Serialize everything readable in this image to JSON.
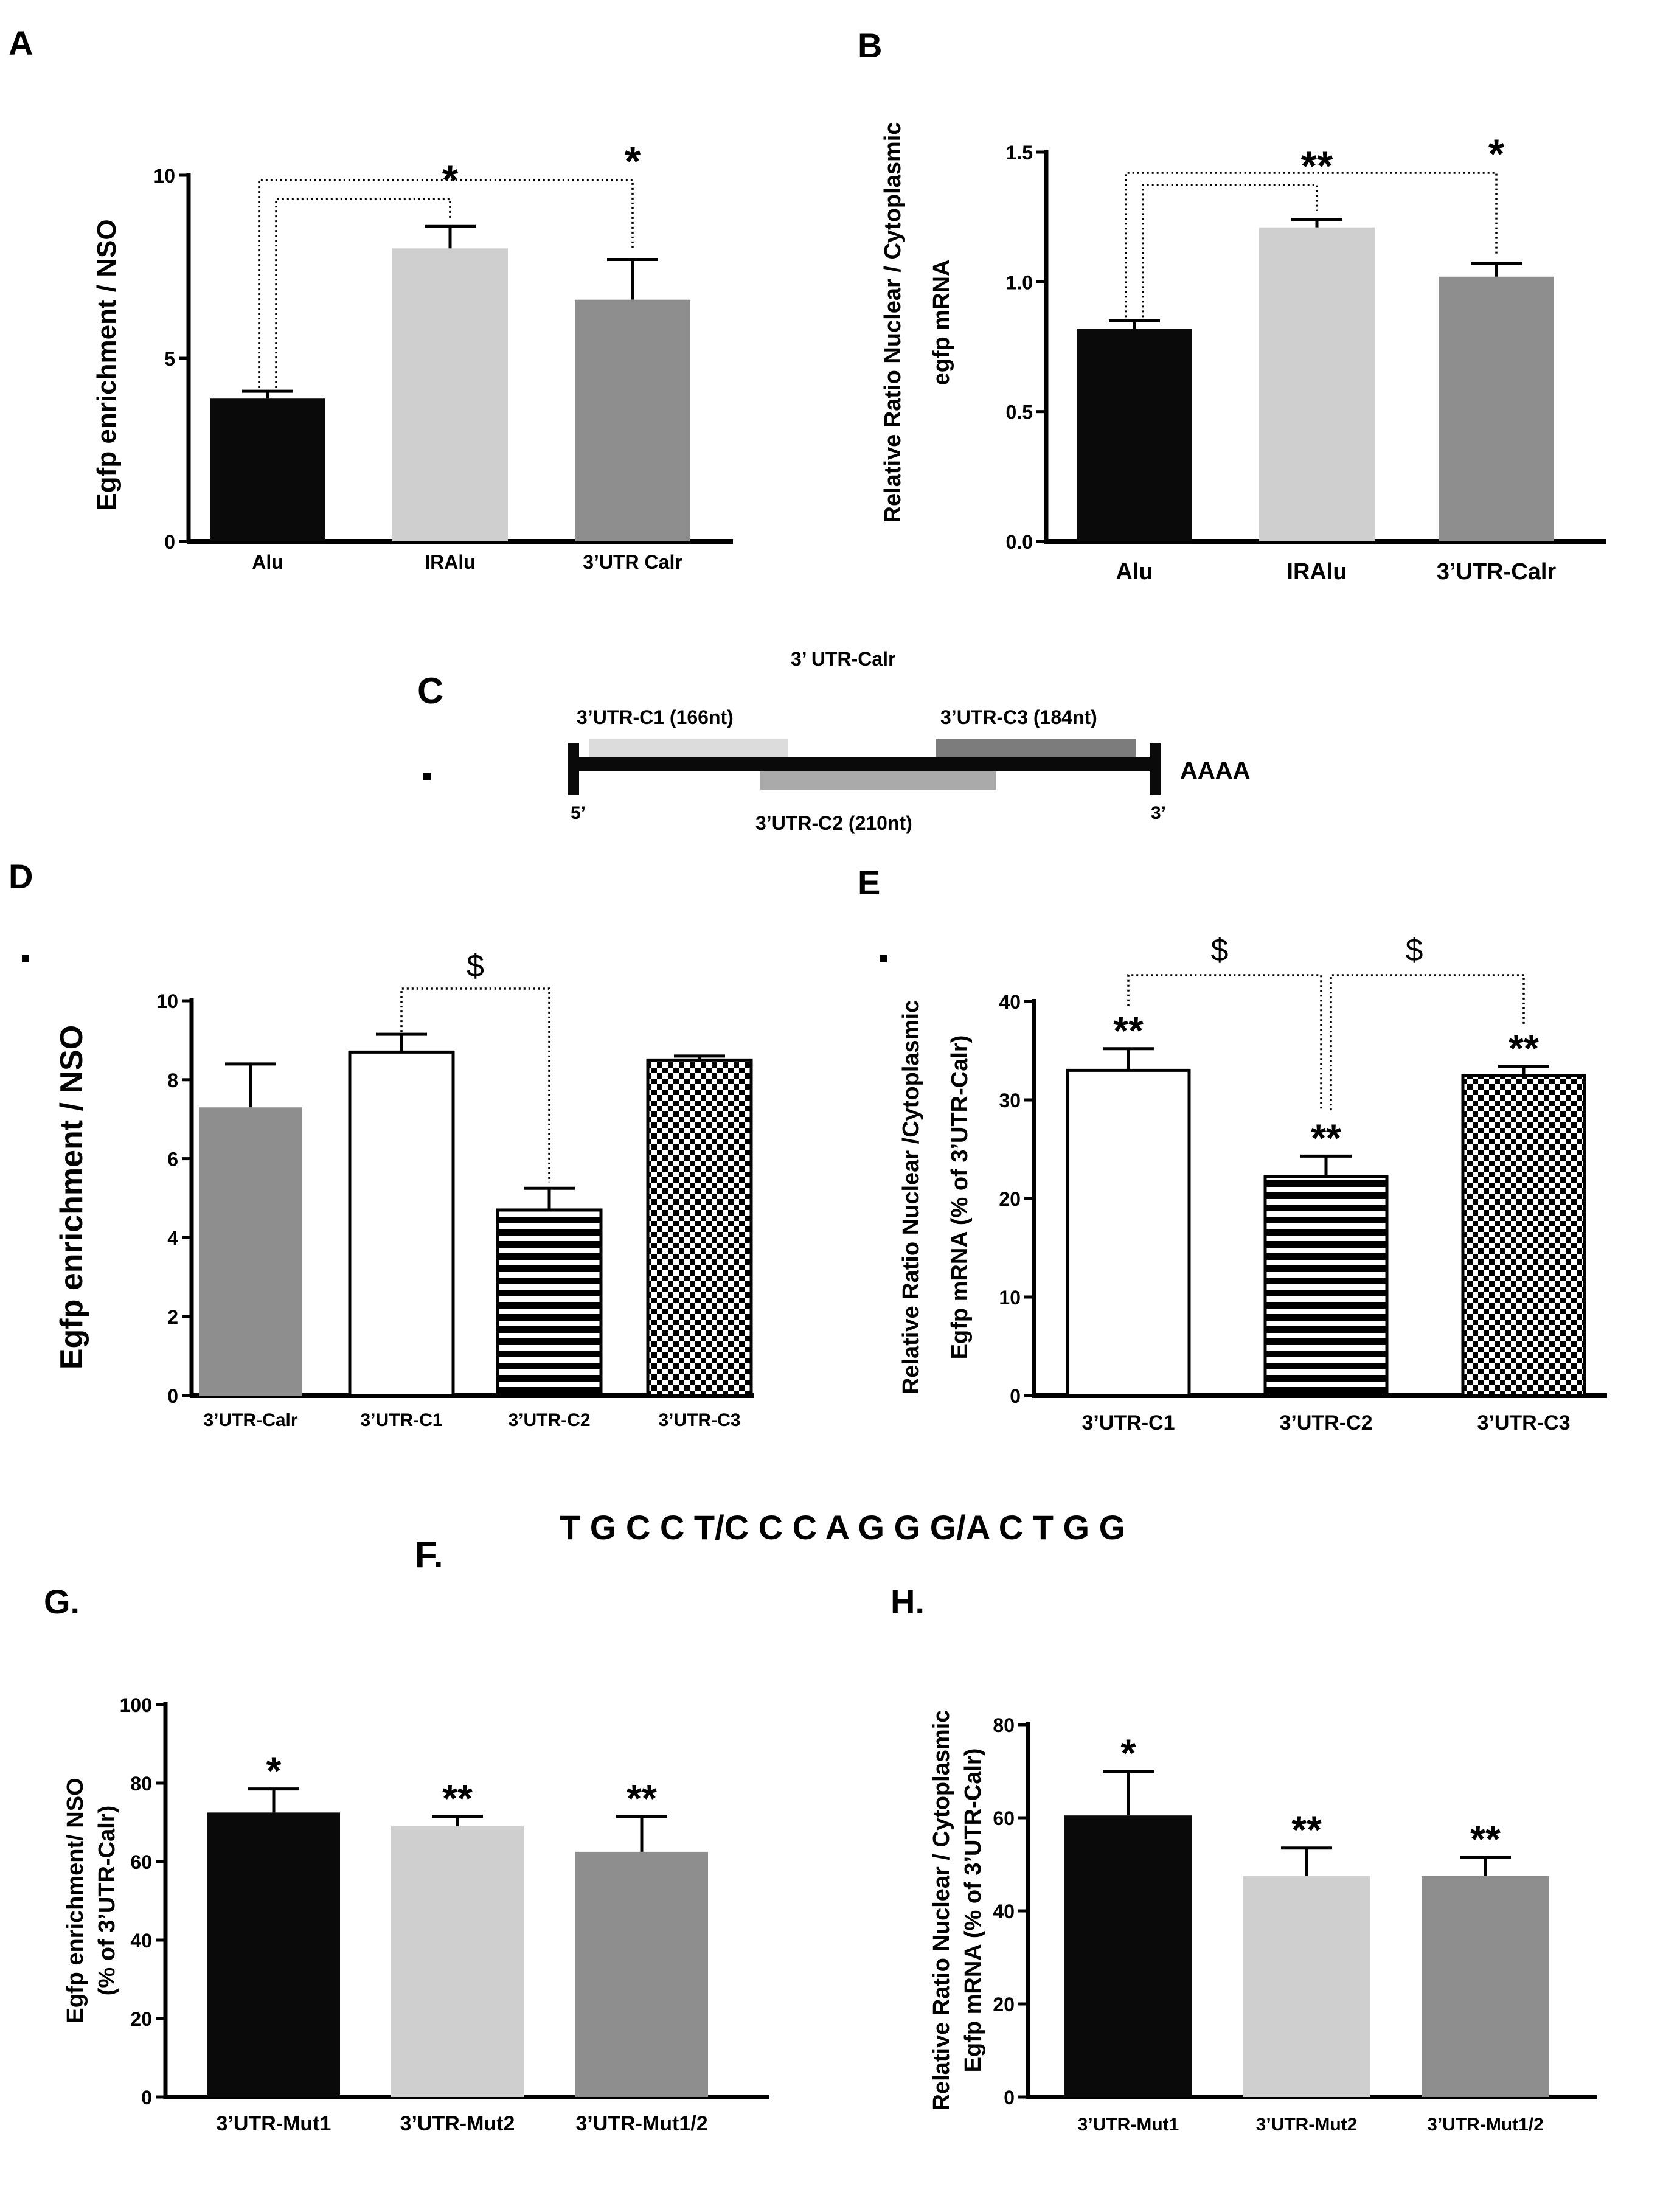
{
  "sequence": {
    "label": "F.",
    "text": "T G C C T/C C C A G G G/A C T G G"
  },
  "schematic": {
    "panel_label": "C",
    "title": "3’ UTR-Calr",
    "segment_1": "3’UTR-C1 (166nt)",
    "segment_2": "3’UTR-C2 (210nt)",
    "segment_3": "3’UTR-C3 (184nt)",
    "end_5": "5’",
    "end_3": "3’",
    "polyA": "AAAA"
  },
  "colors": {
    "black": "#0a0a0a",
    "light_gray": "#cfcfcf",
    "mid_gray": "#8e8e8e",
    "white": "#ffffff"
  },
  "chart_data": [
    {
      "id": "A",
      "panel_label": "A",
      "type": "bar",
      "ylabel": "Egfp enrichment  / NSO",
      "xlabel": "",
      "ylim": [
        0,
        10
      ],
      "yticks": [
        "0",
        "5",
        "10"
      ],
      "categories": [
        "Alu",
        "IRAlu",
        "3’UTR Calr"
      ],
      "values": [
        3.9,
        8.0,
        6.6
      ],
      "errors": [
        0.2,
        0.6,
        1.1
      ],
      "fills": [
        "black",
        "light_gray",
        "mid_gray"
      ],
      "bar_labels": [
        "",
        "",
        ""
      ],
      "brackets": [
        {
          "from": 0,
          "to": 1,
          "label": "*"
        },
        {
          "from": 0,
          "to": 2,
          "label": "*"
        }
      ]
    },
    {
      "id": "B",
      "panel_label": "B",
      "type": "bar",
      "ylabel_lines": [
        "Relative Ratio Nuclear / Cytoplasmic",
        "egfp mRNA"
      ],
      "xlabel": "",
      "ylim": [
        0,
        1.5
      ],
      "yticks": [
        "0.0",
        "0.5",
        "1.0",
        "1.5"
      ],
      "categories": [
        "Alu",
        "IRAlu",
        "3’UTR-Calr"
      ],
      "values": [
        0.82,
        1.21,
        1.02
      ],
      "errors": [
        0.03,
        0.03,
        0.05
      ],
      "fills": [
        "black",
        "light_gray",
        "mid_gray"
      ],
      "bar_labels": [
        "",
        "",
        ""
      ],
      "brackets": [
        {
          "from": 0,
          "to": 1,
          "label": "**"
        },
        {
          "from": 0,
          "to": 2,
          "label": "*"
        }
      ]
    },
    {
      "id": "D",
      "panel_label": "D",
      "type": "bar",
      "ylabel": "Egfp enrichment  / NSO",
      "xlabel": "",
      "ylim": [
        0,
        10
      ],
      "yticks": [
        "0",
        "2",
        "4",
        "6",
        "8",
        "10"
      ],
      "categories": [
        "3’UTR-Calr",
        "3’UTR-C1",
        "3’UTR-C2",
        "3’UTR-C3"
      ],
      "values": [
        7.3,
        8.7,
        4.7,
        8.5
      ],
      "errors": [
        1.1,
        0.45,
        0.55,
        0.1
      ],
      "fills": [
        "mid_gray",
        "white",
        "stripes",
        "checker"
      ],
      "bar_labels": [
        "",
        "",
        "",
        ""
      ],
      "brackets": [
        {
          "from": 1,
          "to": 2,
          "label": "$"
        }
      ]
    },
    {
      "id": "E",
      "panel_label": "E",
      "type": "bar",
      "ylabel_lines": [
        "Relative Ratio Nuclear /Cytoplasmic",
        "Egfp mRNA (% of 3’UTR-Calr)"
      ],
      "xlabel": "",
      "ylim": [
        0,
        40
      ],
      "yticks": [
        "0",
        "10",
        "20",
        "30",
        "40"
      ],
      "categories": [
        "3’UTR-C1",
        "3’UTR-C2",
        "3’UTR-C3"
      ],
      "values": [
        33,
        22.2,
        32.5
      ],
      "errors": [
        2.2,
        2.1,
        0.9
      ],
      "fills": [
        "white",
        "stripes",
        "checker"
      ],
      "bar_labels": [
        "**",
        "**",
        "**"
      ],
      "brackets": [
        {
          "from": 0,
          "to": 1,
          "label": "$"
        },
        {
          "from": 1,
          "to": 2,
          "label": "$"
        }
      ]
    },
    {
      "id": "G",
      "panel_label": "G.",
      "type": "bar",
      "ylabel_lines": [
        "Egfp enrichment/ NSO",
        "(% of 3’UTR-Calr)"
      ],
      "xlabel": "",
      "ylim": [
        0,
        100
      ],
      "yticks": [
        "0",
        "20",
        "40",
        "60",
        "80",
        "100"
      ],
      "categories": [
        "3’UTR-Mut1",
        "3’UTR-Mut2",
        "3’UTR-Mut1/2"
      ],
      "values": [
        72.5,
        69,
        62.5
      ],
      "errors": [
        6,
        2.5,
        9
      ],
      "fills": [
        "black",
        "light_gray",
        "mid_gray"
      ],
      "bar_labels": [
        "*",
        "**",
        "**"
      ],
      "brackets": []
    },
    {
      "id": "H",
      "panel_label": "H.",
      "type": "bar",
      "ylabel_lines": [
        "Relative Ratio Nuclear / Cytoplasmic",
        "Egfp mRNA (% of 3’UTR-Calr)"
      ],
      "xlabel": "",
      "ylim": [
        0,
        80
      ],
      "yticks": [
        "0",
        "20",
        "40",
        "60",
        "80"
      ],
      "categories": [
        "3’UTR-Mut1",
        "3’UTR-Mut2",
        "3’UTR-Mut1/2"
      ],
      "values": [
        60.5,
        47.5,
        47.5
      ],
      "errors": [
        9.5,
        6,
        4
      ],
      "fills": [
        "black",
        "light_gray",
        "mid_gray"
      ],
      "bar_labels": [
        "*",
        "**",
        "**"
      ],
      "brackets": []
    }
  ]
}
